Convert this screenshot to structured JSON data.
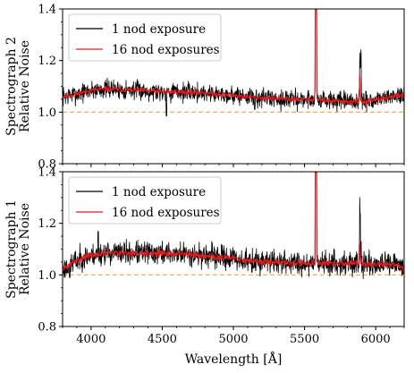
{
  "figure": {
    "xlabel": "Wavelength [Å]"
  },
  "chart_data": [
    {
      "type": "line",
      "panel": "top",
      "ylabel_line1": "Spectrograph 2",
      "ylabel_line2": "Relative Noise",
      "xlim": [
        3800,
        6200
      ],
      "ylim": [
        0.8,
        1.4
      ],
      "xticks": [
        4000,
        4500,
        5000,
        5500,
        6000
      ],
      "yticks": [
        0.8,
        1.0,
        1.2,
        1.4
      ],
      "ytick_labels": [
        "0.8",
        "1.0",
        "1.2",
        "1.4"
      ],
      "reference_line": {
        "y": 1.0,
        "color": "#f5a040",
        "style": "dashed"
      },
      "legend_position": "upper-left",
      "series": [
        {
          "name": "1 nod exposure",
          "color": "#000000",
          "noise_amplitude": 0.018,
          "seed": 7,
          "spikes": [
            [
              4530,
              0.985
            ],
            [
              5150,
              1.01
            ],
            [
              5578,
              1.4
            ],
            [
              5582,
              1.4
            ],
            [
              5890,
              1.17
            ],
            [
              5895,
              1.18
            ]
          ]
        },
        {
          "name": "16 nod exposures",
          "color": "#e41a1c",
          "noise_amplitude": 0.005,
          "seed": 11,
          "spikes": [
            [
              5578,
              1.4
            ],
            [
              5582,
              1.4
            ],
            [
              5890,
              1.12
            ]
          ]
        }
      ],
      "baseline_knots": [
        [
          3800,
          1.06
        ],
        [
          3900,
          1.07
        ],
        [
          4000,
          1.085
        ],
        [
          4100,
          1.09
        ],
        [
          4300,
          1.085
        ],
        [
          4500,
          1.08
        ],
        [
          4800,
          1.075
        ],
        [
          5000,
          1.065
        ],
        [
          5200,
          1.055
        ],
        [
          5400,
          1.05
        ],
        [
          5550,
          1.05
        ],
        [
          5650,
          1.045
        ],
        [
          5800,
          1.04
        ],
        [
          5950,
          1.04
        ],
        [
          6100,
          1.06
        ],
        [
          6200,
          1.065
        ]
      ]
    },
    {
      "type": "line",
      "panel": "bottom",
      "ylabel_line1": "Spectrograph 1",
      "ylabel_line2": "Relative Noise",
      "xlim": [
        3800,
        6200
      ],
      "ylim": [
        0.8,
        1.4
      ],
      "xticks": [
        4000,
        4500,
        5000,
        5500,
        6000
      ],
      "xtick_labels": [
        "4000",
        "4500",
        "5000",
        "5500",
        "6000"
      ],
      "yticks": [
        0.8,
        1.0,
        1.2,
        1.4
      ],
      "ytick_labels": [
        "0.8",
        "1.0",
        "1.2",
        "1.4"
      ],
      "reference_line": {
        "y": 1.0,
        "color": "#f5a040",
        "style": "dashed"
      },
      "legend_position": "upper-left",
      "series": [
        {
          "name": "1 nod exposure",
          "color": "#000000",
          "noise_amplitude": 0.022,
          "seed": 23,
          "spikes": [
            [
              3850,
              0.99
            ],
            [
              4050,
              1.17
            ],
            [
              5130,
              1.01
            ],
            [
              5578,
              1.4
            ],
            [
              5582,
              1.4
            ],
            [
              5890,
              1.24
            ]
          ]
        },
        {
          "name": "16 nod exposures",
          "color": "#e41a1c",
          "noise_amplitude": 0.006,
          "seed": 31,
          "spikes": [
            [
              5578,
              1.4
            ],
            [
              5582,
              1.4
            ],
            [
              5890,
              1.1
            ]
          ]
        }
      ],
      "baseline_knots": [
        [
          3800,
          1.02
        ],
        [
          3850,
          1.04
        ],
        [
          3950,
          1.07
        ],
        [
          4100,
          1.085
        ],
        [
          4400,
          1.085
        ],
        [
          4700,
          1.08
        ],
        [
          4900,
          1.07
        ],
        [
          5100,
          1.055
        ],
        [
          5300,
          1.05
        ],
        [
          5500,
          1.045
        ],
        [
          5800,
          1.045
        ],
        [
          6000,
          1.04
        ],
        [
          6150,
          1.04
        ],
        [
          6200,
          1.02
        ]
      ]
    }
  ]
}
